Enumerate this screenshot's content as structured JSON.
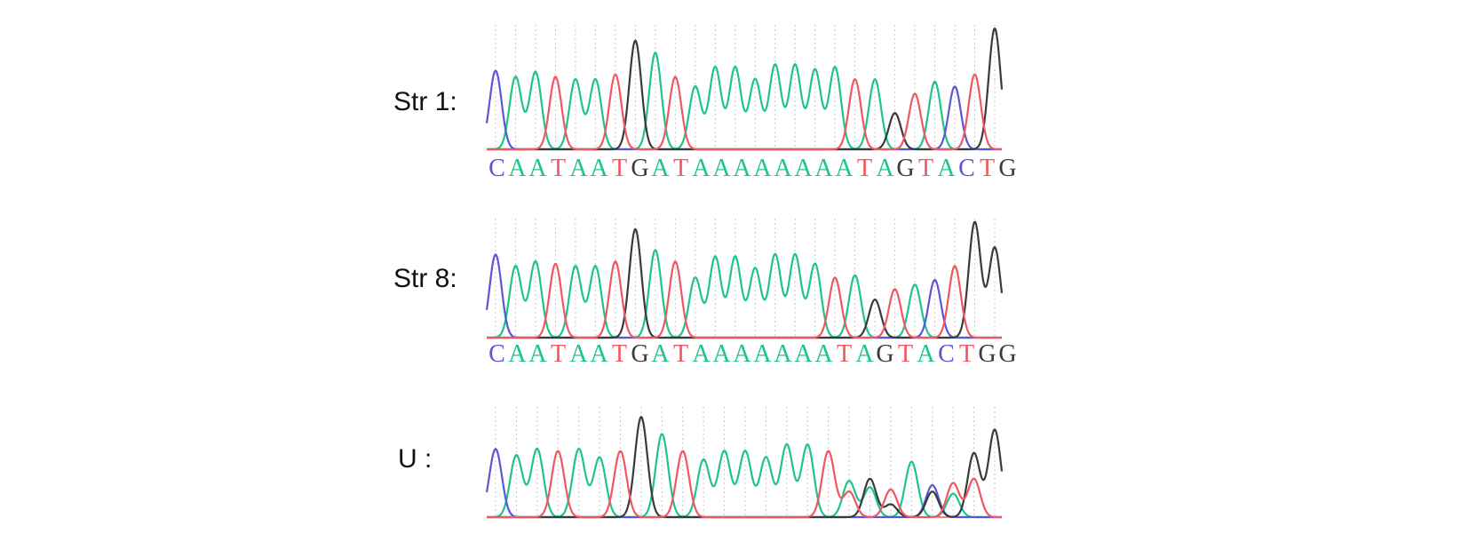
{
  "colors": {
    "A": "#1fc48b",
    "C": "#5b55d8",
    "G": "#3a3a3a",
    "T": "#f0585f"
  },
  "panels": [
    {
      "label": "Str 1:",
      "sequence": "CAATAATGATAAAAAAAATAGTACTG"
    },
    {
      "label": "Str 8:",
      "sequence": "CAATAATGATAAAAAAATAGTACTGG"
    },
    {
      "label": "U :",
      "sequence": ""
    }
  ],
  "chart_data": [
    {
      "type": "line",
      "title": "",
      "series_names": [
        "A",
        "C",
        "G",
        "T"
      ],
      "base_calls": [
        "C",
        "A",
        "A",
        "T",
        "A",
        "A",
        "T",
        "G",
        "A",
        "T",
        "A",
        "A",
        "A",
        "A",
        "A",
        "A",
        "A",
        "A",
        "T",
        "A",
        "G",
        "T",
        "A",
        "C",
        "T",
        "G"
      ],
      "peak_heights": [
        0.65,
        0.6,
        0.64,
        0.6,
        0.58,
        0.58,
        0.62,
        0.9,
        0.8,
        0.6,
        0.52,
        0.68,
        0.68,
        0.58,
        0.7,
        0.7,
        0.66,
        0.68,
        0.58,
        0.58,
        0.3,
        0.46,
        0.56,
        0.52,
        0.62,
        1.0
      ],
      "secondary_peaks": []
    },
    {
      "type": "line",
      "title": "",
      "series_names": [
        "A",
        "C",
        "G",
        "T"
      ],
      "base_calls": [
        "C",
        "A",
        "A",
        "T",
        "A",
        "A",
        "T",
        "G",
        "A",
        "T",
        "A",
        "A",
        "A",
        "A",
        "A",
        "A",
        "A",
        "T",
        "A",
        "G",
        "T",
        "A",
        "C",
        "T",
        "G",
        "G"
      ],
      "peak_heights": [
        0.72,
        0.62,
        0.66,
        0.64,
        0.62,
        0.62,
        0.66,
        0.94,
        0.76,
        0.66,
        0.52,
        0.7,
        0.7,
        0.6,
        0.72,
        0.72,
        0.64,
        0.52,
        0.54,
        0.33,
        0.42,
        0.46,
        0.5,
        0.62,
        1.0,
        0.78
      ],
      "secondary_peaks": []
    },
    {
      "type": "line",
      "title": "",
      "series_names": [
        "A",
        "C",
        "G",
        "T"
      ],
      "base_calls": [
        "C",
        "A",
        "A",
        "T",
        "A",
        "A",
        "T",
        "G",
        "A",
        "T",
        "A",
        "A",
        "A",
        "A",
        "A",
        "A",
        "T",
        "A",
        "G",
        "T",
        "A",
        "C",
        "T",
        "G",
        "G"
      ],
      "peak_heights": [
        0.64,
        0.58,
        0.64,
        0.62,
        0.64,
        0.56,
        0.62,
        0.94,
        0.78,
        0.62,
        0.54,
        0.62,
        0.62,
        0.56,
        0.68,
        0.68,
        0.62,
        0.34,
        0.36,
        0.26,
        0.3,
        0.3,
        0.32,
        0.6,
        0.82
      ],
      "secondary_peaks": [
        {
          "index": 17,
          "base": "T",
          "height": 0.24
        },
        {
          "index": 18,
          "base": "A",
          "height": 0.28
        },
        {
          "index": 19,
          "base": "G",
          "height": 0.12
        },
        {
          "index": 20,
          "base": "A",
          "height": 0.22
        },
        {
          "index": 21,
          "base": "G",
          "height": 0.24
        },
        {
          "index": 22,
          "base": "A",
          "height": 0.22
        },
        {
          "index": 23,
          "base": "T",
          "height": 0.36
        }
      ]
    }
  ]
}
